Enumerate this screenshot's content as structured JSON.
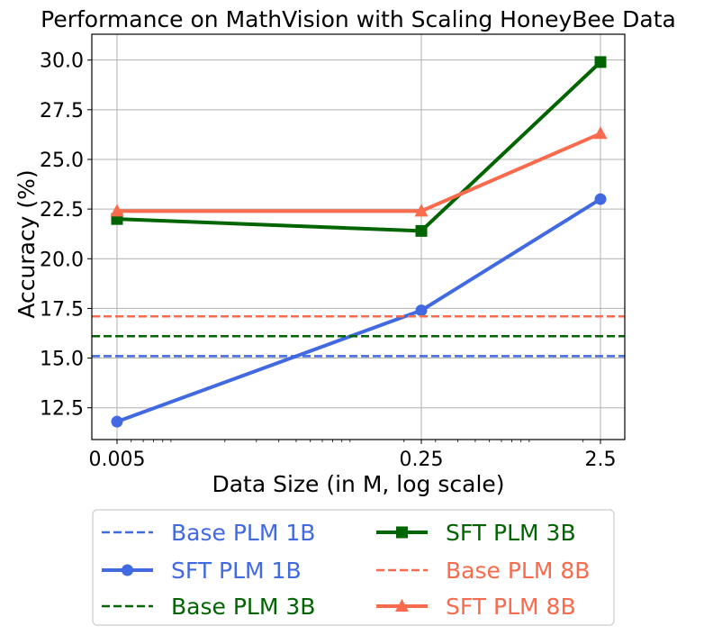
{
  "colors": {
    "blue": "#4169e1",
    "green": "#006400",
    "red": "#fa6a4c",
    "grid": "#b0b0b0",
    "axis": "#000000"
  },
  "chart_data": {
    "type": "line",
    "title": "Performance on MathVision with Scaling HoneyBee Data",
    "xlabel": "Data Size (in M, log scale)",
    "ylabel": "Accuracy (%)",
    "xscale": "log",
    "x": [
      0.005,
      0.25,
      2.5
    ],
    "xtick_labels": [
      "0.005",
      "0.25",
      "2.5"
    ],
    "ylim": [
      10.9,
      31.3
    ],
    "yticks": [
      12.5,
      15.0,
      17.5,
      20.0,
      22.5,
      25.0,
      27.5,
      30.0
    ],
    "ytick_labels": [
      "12.5",
      "15.0",
      "17.5",
      "20.0",
      "22.5",
      "25.0",
      "27.5",
      "30.0"
    ],
    "grid": true,
    "legend_position": "below",
    "series": [
      {
        "name": "Base PLM 1B",
        "kind": "hline",
        "value": 15.1,
        "color": "#4169e1",
        "style": "dashed"
      },
      {
        "name": "SFT PLM 1B",
        "kind": "line",
        "values": [
          11.8,
          17.4,
          23.0
        ],
        "color": "#4169e1",
        "marker": "circle"
      },
      {
        "name": "Base PLM 3B",
        "kind": "hline",
        "value": 16.1,
        "color": "#006400",
        "style": "dashed"
      },
      {
        "name": "SFT PLM 3B",
        "kind": "line",
        "values": [
          22.0,
          21.4,
          29.9
        ],
        "color": "#006400",
        "marker": "square"
      },
      {
        "name": "Base PLM 8B",
        "kind": "hline",
        "value": 17.1,
        "color": "#fa6a4c",
        "style": "dashed"
      },
      {
        "name": "SFT PLM 8B",
        "kind": "line",
        "values": [
          22.4,
          22.4,
          26.3
        ],
        "color": "#fa6a4c",
        "marker": "triangle"
      }
    ],
    "legend_order": [
      "Base PLM 1B",
      "SFT PLM 1B",
      "Base PLM 3B",
      "SFT PLM 3B",
      "Base PLM 8B",
      "SFT PLM 8B"
    ]
  }
}
